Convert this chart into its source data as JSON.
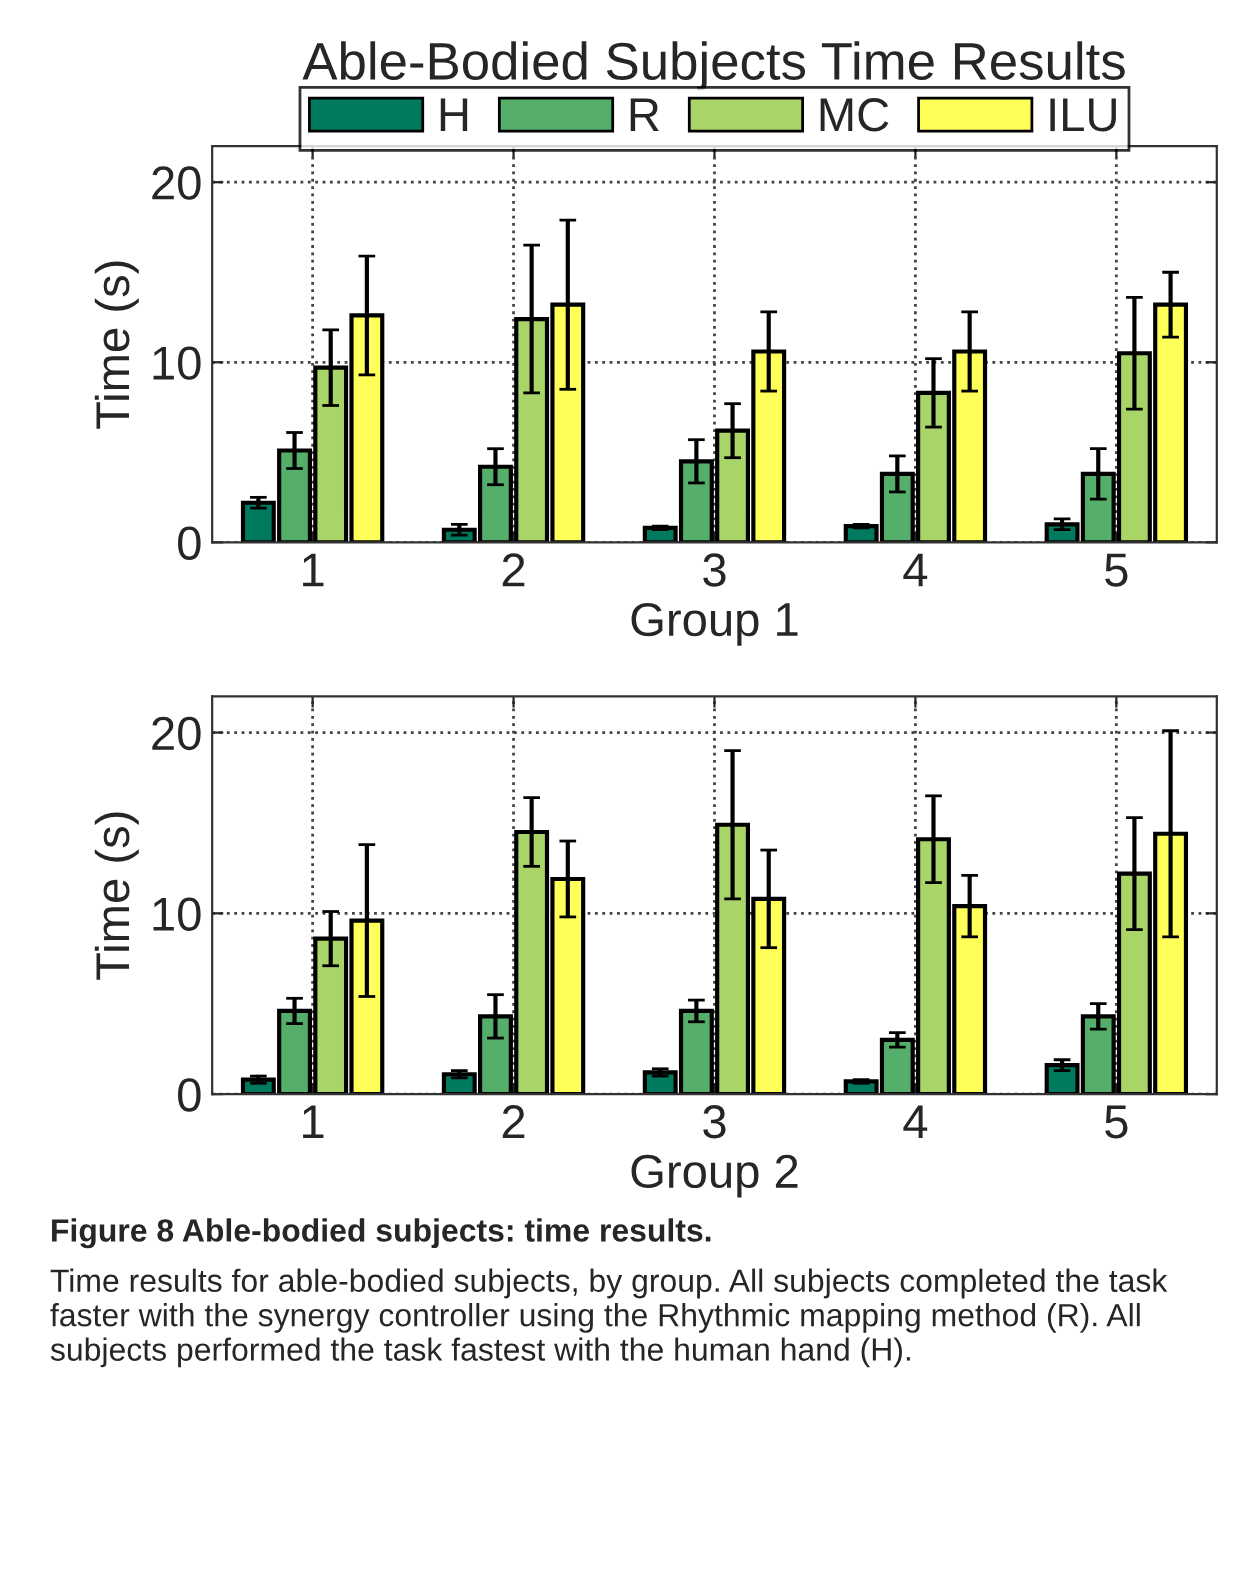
{
  "chart_data": [
    {
      "type": "bar",
      "title": "Able-Bodied Subjects Time Results",
      "xlabel": "Group 1",
      "ylabel": "Time (s)",
      "categories": [
        "1",
        "2",
        "3",
        "4",
        "5"
      ],
      "ylim": [
        0,
        22
      ],
      "yticks": [
        0,
        10,
        20
      ],
      "grid": true,
      "legend": "top",
      "series": [
        {
          "name": "H",
          "color": "#007a5e",
          "values": [
            2.2,
            0.7,
            0.8,
            0.9,
            1.0
          ],
          "errors": [
            0.3,
            0.3,
            0.1,
            0.1,
            0.3
          ]
        },
        {
          "name": "R",
          "color": "#55ae69",
          "values": [
            5.1,
            4.2,
            4.5,
            3.8,
            3.8
          ],
          "errors": [
            1.0,
            1.0,
            1.2,
            1.0,
            1.4
          ]
        },
        {
          "name": "MC",
          "color": "#a8d468",
          "values": [
            9.7,
            12.4,
            6.2,
            8.3,
            10.5
          ],
          "errors": [
            2.1,
            4.1,
            1.5,
            1.9,
            3.1
          ]
        },
        {
          "name": "ILU",
          "color": "#ffff5a",
          "values": [
            12.6,
            13.2,
            10.6,
            10.6,
            13.2
          ],
          "errors": [
            3.3,
            4.7,
            2.2,
            2.2,
            1.8
          ]
        }
      ]
    },
    {
      "type": "bar",
      "xlabel": "Group 2",
      "ylabel": "Time (s)",
      "categories": [
        "1",
        "2",
        "3",
        "4",
        "5"
      ],
      "ylim": [
        0,
        22
      ],
      "yticks": [
        0,
        10,
        20
      ],
      "grid": true,
      "annotations": [
        "Figure 8 Able-bodied subjects: time results.",
        "Time results for able-bodied subjects, by group. All subjects completed the task faster with the synergy controller using the Rhythmic mapping method (R). All subjects performed the task fastest with the human hand (H)."
      ],
      "series": [
        {
          "color": "#007a5e",
          "values": [
            0.8,
            1.1,
            1.2,
            0.7,
            1.6
          ],
          "errors": [
            0.2,
            0.2,
            0.2,
            0.1,
            0.3
          ]
        },
        {
          "color": "#55ae69",
          "values": [
            4.6,
            4.3,
            4.6,
            3.0,
            4.3
          ],
          "errors": [
            0.7,
            1.2,
            0.6,
            0.4,
            0.7
          ]
        },
        {
          "color": "#a8d468",
          "values": [
            8.6,
            14.5,
            14.9,
            14.1,
            12.2
          ],
          "errors": [
            1.5,
            1.9,
            4.1,
            2.4,
            3.1
          ]
        },
        {
          "color": "#ffff5a",
          "values": [
            9.6,
            11.9,
            10.8,
            10.4,
            14.4
          ],
          "errors": [
            4.2,
            2.1,
            2.7,
            1.7,
            5.7
          ]
        }
      ]
    }
  ]
}
